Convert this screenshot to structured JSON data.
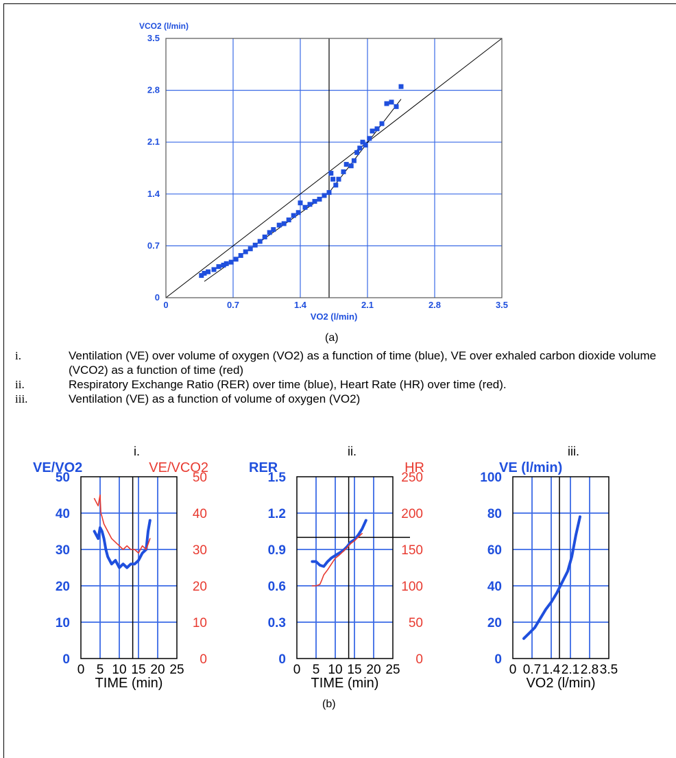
{
  "captions": {
    "a": "(a)",
    "b": "(b)"
  },
  "legend": [
    {
      "num": "i.",
      "text": "Ventilation (VE) over volume of oxygen (VO2) as a function of time (blue), VE over exhaled carbon dioxide volume (VCO2) as a function of time (red)"
    },
    {
      "num": "ii.",
      "text": "Respiratory Exchange Ratio (RER) over time (blue), Heart Rate (HR) over time (red)."
    },
    {
      "num": "iii.",
      "text": "Ventilation (VE) as a function of volume of oxygen (VO2)"
    }
  ],
  "colors": {
    "blue": "#1f4fdd",
    "red": "#e83a30",
    "grid": "#3a6ae6",
    "black": "#000000"
  },
  "chart_data": [
    {
      "id": "a",
      "type": "scatter",
      "xlabel": "VO2 (l/min)",
      "ylabel": "VCO2 (l/min)",
      "xlim": [
        0,
        3.5
      ],
      "ylim": [
        0,
        3.5
      ],
      "xticks": [
        "0",
        "0.7",
        "1.4",
        "2.1",
        "2.8",
        "3.5"
      ],
      "yticks": [
        "0",
        "0.7",
        "1.4",
        "2.1",
        "2.8",
        "3.5"
      ],
      "grid": true,
      "vline": 1.7,
      "identity_line": [
        [
          0,
          0
        ],
        [
          3.5,
          3.5
        ]
      ],
      "fit_line": [
        [
          0.4,
          0.22
        ],
        [
          1.7,
          1.42
        ],
        [
          2.45,
          2.68
        ]
      ],
      "points": [
        [
          0.37,
          0.3
        ],
        [
          0.4,
          0.33
        ],
        [
          0.44,
          0.35
        ],
        [
          0.5,
          0.38
        ],
        [
          0.55,
          0.42
        ],
        [
          0.6,
          0.44
        ],
        [
          0.63,
          0.46
        ],
        [
          0.68,
          0.48
        ],
        [
          0.73,
          0.52
        ],
        [
          0.78,
          0.57
        ],
        [
          0.83,
          0.62
        ],
        [
          0.88,
          0.66
        ],
        [
          0.93,
          0.71
        ],
        [
          0.98,
          0.76
        ],
        [
          1.03,
          0.82
        ],
        [
          1.08,
          0.88
        ],
        [
          1.12,
          0.92
        ],
        [
          1.18,
          0.98
        ],
        [
          1.23,
          1.0
        ],
        [
          1.28,
          1.05
        ],
        [
          1.33,
          1.11
        ],
        [
          1.38,
          1.15
        ],
        [
          1.4,
          1.28
        ],
        [
          1.45,
          1.22
        ],
        [
          1.5,
          1.26
        ],
        [
          1.55,
          1.3
        ],
        [
          1.6,
          1.33
        ],
        [
          1.65,
          1.38
        ],
        [
          1.7,
          1.42
        ],
        [
          1.72,
          1.68
        ],
        [
          1.74,
          1.6
        ],
        [
          1.77,
          1.52
        ],
        [
          1.8,
          1.6
        ],
        [
          1.85,
          1.7
        ],
        [
          1.88,
          1.8
        ],
        [
          1.93,
          1.78
        ],
        [
          1.96,
          1.85
        ],
        [
          1.99,
          1.96
        ],
        [
          2.02,
          2.02
        ],
        [
          2.05,
          2.1
        ],
        [
          2.08,
          2.06
        ],
        [
          2.12,
          2.15
        ],
        [
          2.15,
          2.25
        ],
        [
          2.2,
          2.28
        ],
        [
          2.25,
          2.35
        ],
        [
          2.3,
          2.62
        ],
        [
          2.35,
          2.64
        ],
        [
          2.4,
          2.58
        ],
        [
          2.45,
          2.85
        ]
      ]
    },
    {
      "id": "b-i",
      "label": "i.",
      "type": "line",
      "ylabel_left": "VE/VO2",
      "ylabel_right": "VE/VCO2",
      "xlabel": "TIME (min)",
      "xlim": [
        0,
        25
      ],
      "ylim": [
        0,
        50
      ],
      "ylim_right": [
        0,
        50
      ],
      "xticks": [
        "0",
        "5",
        "10",
        "15",
        "20",
        "25"
      ],
      "yticks": [
        "0",
        "10",
        "20",
        "30",
        "40",
        "50"
      ],
      "yticks_right": [
        "0",
        "10",
        "20",
        "30",
        "40",
        "50"
      ],
      "grid": true,
      "vline": 13.5,
      "series": [
        {
          "color": "blue",
          "x": [
            3.5,
            4,
            4.5,
            5,
            5.5,
            6,
            6.5,
            7,
            7.5,
            8,
            9,
            10,
            11,
            12,
            13,
            14,
            15,
            16,
            17,
            17.5,
            18
          ],
          "y": [
            35,
            34,
            33,
            36,
            35,
            33,
            30,
            28,
            27,
            26,
            27,
            25,
            26,
            25,
            26,
            26,
            27,
            29,
            30,
            35,
            38
          ]
        },
        {
          "color": "red",
          "x": [
            3.5,
            4,
            4.5,
            5,
            5.2,
            5.5,
            6,
            7,
            8,
            9,
            10,
            11,
            12,
            13,
            14,
            15,
            16,
            17,
            18
          ],
          "y": [
            44,
            43,
            42,
            45,
            40,
            39,
            37,
            35,
            33,
            32,
            31,
            30,
            31,
            30,
            30,
            29,
            31,
            30,
            33
          ]
        }
      ]
    },
    {
      "id": "b-ii",
      "label": "ii.",
      "type": "line",
      "ylabel_left": "RER",
      "ylabel_right": "HR",
      "xlabel": "TIME (min)",
      "xlim": [
        0,
        25
      ],
      "ylim": [
        0,
        1.5
      ],
      "ylim_right": [
        0,
        250
      ],
      "xticks": [
        "0",
        "5",
        "10",
        "15",
        "20",
        "25"
      ],
      "yticks": [
        "0",
        "0.3",
        "0.6",
        "0.9",
        "1.2",
        "1.5"
      ],
      "yticks_right": [
        "0",
        "50",
        "100",
        "150",
        "200",
        "250"
      ],
      "grid": true,
      "vline": 13.5,
      "hline": 1.0,
      "series": [
        {
          "color": "blue",
          "x": [
            4,
            5,
            6,
            7,
            8,
            9,
            10,
            11,
            12,
            13,
            14,
            15,
            16,
            17,
            18
          ],
          "y": [
            0.8,
            0.8,
            0.77,
            0.76,
            0.8,
            0.83,
            0.85,
            0.87,
            0.89,
            0.92,
            0.96,
            0.98,
            1.02,
            1.07,
            1.14
          ]
        },
        {
          "color": "red",
          "x": [
            4,
            5,
            6,
            6.5,
            7,
            8,
            9,
            10,
            11,
            12,
            13,
            14,
            15,
            16,
            17
          ],
          "y": [
            100,
            100,
            102,
            108,
            115,
            122,
            130,
            138,
            142,
            147,
            152,
            158,
            162,
            167,
            172
          ]
        }
      ]
    },
    {
      "id": "b-iii",
      "label": "iii.",
      "type": "line",
      "ylabel": "VE (l/min)",
      "xlabel": "VO2 (l/min)",
      "xlim": [
        0,
        3.5
      ],
      "ylim": [
        0,
        100
      ],
      "xticks": [
        "0",
        "0.7",
        "1.4",
        "2.1",
        "2.8",
        "3.5"
      ],
      "yticks": [
        "0",
        "20",
        "40",
        "60",
        "80",
        "100"
      ],
      "grid": true,
      "vline": 1.7,
      "series": [
        {
          "color": "blue",
          "x": [
            0.4,
            0.6,
            0.8,
            1.0,
            1.2,
            1.4,
            1.6,
            1.8,
            2.0,
            2.15,
            2.3,
            2.45
          ],
          "y": [
            11,
            14,
            17,
            22,
            27,
            31,
            36,
            42,
            48,
            56,
            68,
            78
          ]
        }
      ]
    }
  ]
}
